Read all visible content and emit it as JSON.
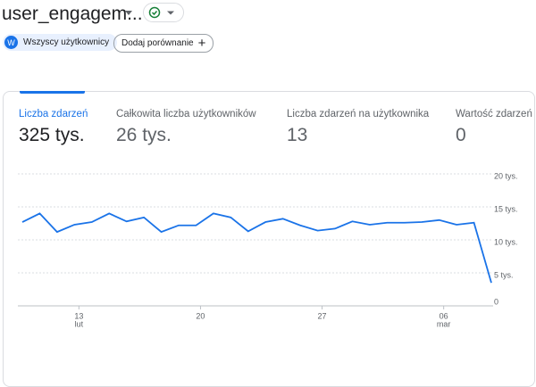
{
  "header": {
    "title": "user_engagem..."
  },
  "chips": {
    "avatar": "W",
    "segment": "Wszyscy użytkownicy",
    "add": "Dodaj porównanie"
  },
  "metrics": [
    {
      "label": "Liczba zdarzeń",
      "value": "325 tys."
    },
    {
      "label": "Całkowita liczba użytkowników",
      "value": "26 tys."
    },
    {
      "label": "Liczba zdarzeń na użytkownika",
      "value": "13"
    },
    {
      "label": "Wartość zdarzeń",
      "value": "0"
    }
  ],
  "chart_data": {
    "type": "line",
    "categories": [
      null,
      null,
      null,
      "13",
      null,
      null,
      null,
      null,
      null,
      null,
      "20",
      null,
      null,
      null,
      null,
      null,
      null,
      "27",
      null,
      null,
      null,
      null,
      null,
      null,
      "06",
      null,
      null,
      null
    ],
    "month_labels": [
      null,
      null,
      null,
      "lut",
      null,
      null,
      null,
      null,
      null,
      null,
      null,
      null,
      null,
      null,
      null,
      null,
      null,
      null,
      null,
      null,
      null,
      null,
      null,
      null,
      "mar",
      null,
      null,
      null
    ],
    "series": [
      {
        "name": "Liczba zdarzeń",
        "color": "#1a73e8",
        "values": [
          12.7,
          14,
          11.2,
          12.3,
          12.7,
          14,
          12.8,
          13.4,
          11.2,
          12.2,
          12.2,
          14,
          13.4,
          11.3,
          12.7,
          13.2,
          12.2,
          11.4,
          11.7,
          12.8,
          12.3,
          12.6,
          12.6,
          12.7,
          13,
          12.3,
          12.6,
          3.5
        ]
      }
    ],
    "ylim": [
      0,
      20
    ],
    "yticks": [
      0,
      {
        "value": 5,
        "label": "5 tys."
      },
      {
        "value": 10,
        "label": "10 tys."
      },
      {
        "value": 15,
        "label": "15 tys."
      },
      {
        "value": 20,
        "label": "20 tys."
      }
    ],
    "grid": true
  }
}
